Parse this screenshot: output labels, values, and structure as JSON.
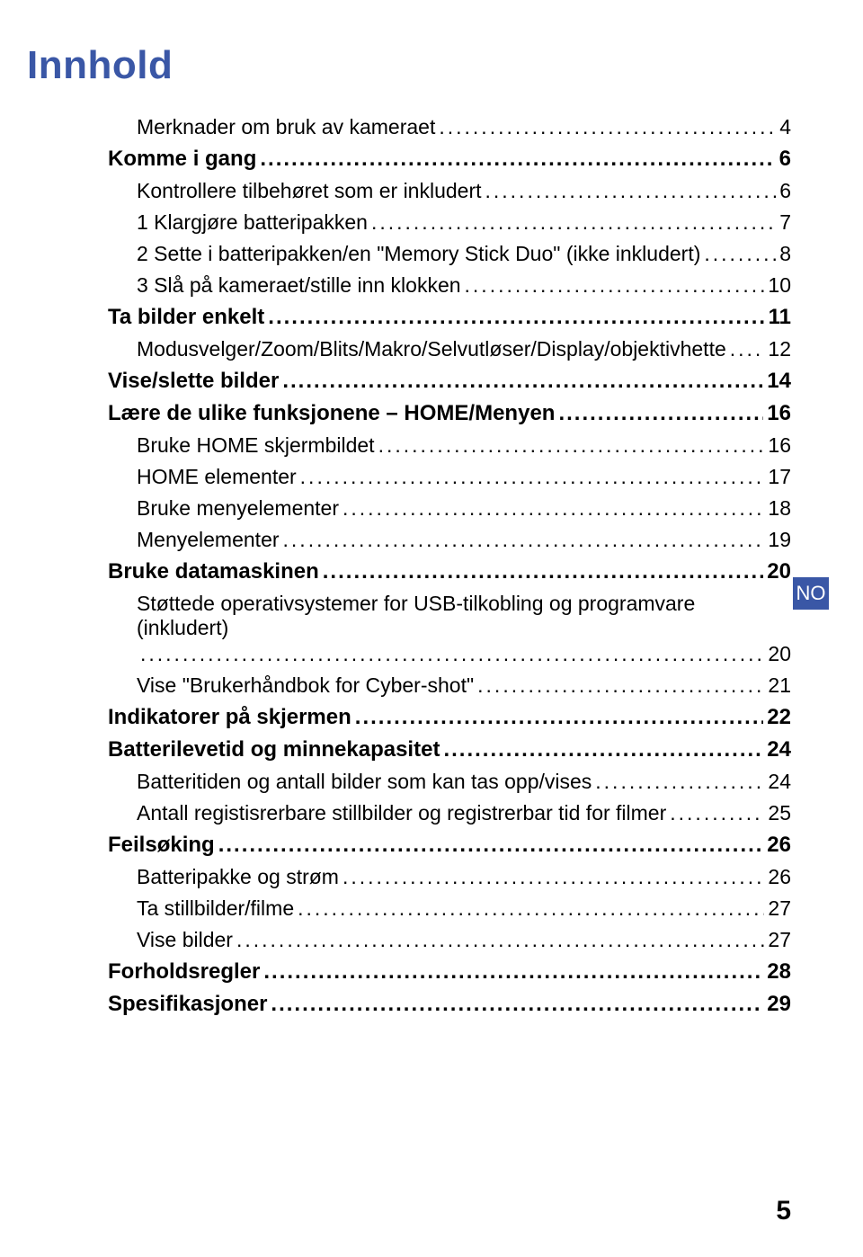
{
  "title": "Innhold",
  "tab_label": "NO",
  "footer_page": "5",
  "toc": [
    {
      "label": "Merknader om bruk av kameraet",
      "page": "4",
      "bold": false,
      "indent": 1
    },
    {
      "label": "Komme i gang",
      "page": "6",
      "bold": true,
      "indent": 0,
      "gap": true
    },
    {
      "label": "Kontrollere tilbehøret som er inkludert",
      "page": "6",
      "bold": false,
      "indent": 1
    },
    {
      "label": "1 Klargjøre batteripakken",
      "page": "7",
      "bold": false,
      "indent": 1
    },
    {
      "label": "2 Sette i batteripakken/en \"Memory Stick Duo\" (ikke inkludert)",
      "page": "8",
      "bold": false,
      "indent": 1
    },
    {
      "label": "3 Slå på kameraet/stille inn klokken",
      "page": "10",
      "bold": false,
      "indent": 1
    },
    {
      "label": "Ta bilder enkelt",
      "page": "11",
      "bold": true,
      "indent": 0,
      "gap": true
    },
    {
      "label": "Modusvelger/Zoom/Blits/Makro/Selvutløser/Display/objektivhette",
      "page": "12",
      "bold": false,
      "indent": 1
    },
    {
      "label": "Vise/slette bilder",
      "page": "14",
      "bold": true,
      "indent": 0,
      "gap": true
    },
    {
      "label": "Lære de ulike funksjonene – HOME/Menyen",
      "page": "16",
      "bold": true,
      "indent": 0,
      "gap": true
    },
    {
      "label": "Bruke HOME skjermbildet",
      "page": "16",
      "bold": false,
      "indent": 1
    },
    {
      "label": "HOME elementer",
      "page": "17",
      "bold": false,
      "indent": 1
    },
    {
      "label": "Bruke menyelementer",
      "page": "18",
      "bold": false,
      "indent": 1
    },
    {
      "label": "Menyelementer",
      "page": "19",
      "bold": false,
      "indent": 1
    },
    {
      "label": "Bruke datamaskinen",
      "page": "20",
      "bold": true,
      "indent": 0,
      "gap": true
    },
    {
      "label": "Støttede operativsystemer for USB-tilkobling og programvare (inkludert)",
      "page": "20",
      "bold": false,
      "indent": 1,
      "wrap": true
    },
    {
      "label": "Vise \"Brukerhåndbok for Cyber-shot\"",
      "page": "21",
      "bold": false,
      "indent": 1
    },
    {
      "label": "Indikatorer på skjermen",
      "page": "22",
      "bold": true,
      "indent": 0,
      "gap": true
    },
    {
      "label": "Batterilevetid og minnekapasitet",
      "page": "24",
      "bold": true,
      "indent": 0,
      "gap": true
    },
    {
      "label": "Batteritiden og antall bilder som kan tas opp/vises",
      "page": "24",
      "bold": false,
      "indent": 1
    },
    {
      "label": "Antall registisrerbare stillbilder og registrerbar tid for filmer",
      "page": "25",
      "bold": false,
      "indent": 1
    },
    {
      "label": "Feilsøking",
      "page": "26",
      "bold": true,
      "indent": 0,
      "gap": true
    },
    {
      "label": "Batteripakke og strøm",
      "page": "26",
      "bold": false,
      "indent": 1
    },
    {
      "label": "Ta stillbilder/filme",
      "page": "27",
      "bold": false,
      "indent": 1
    },
    {
      "label": "Vise bilder",
      "page": "27",
      "bold": false,
      "indent": 1
    },
    {
      "label": "Forholdsregler",
      "page": "28",
      "bold": true,
      "indent": 0,
      "gap": true
    },
    {
      "label": "Spesifikasjoner",
      "page": "29",
      "bold": true,
      "indent": 0,
      "gap": true
    }
  ]
}
